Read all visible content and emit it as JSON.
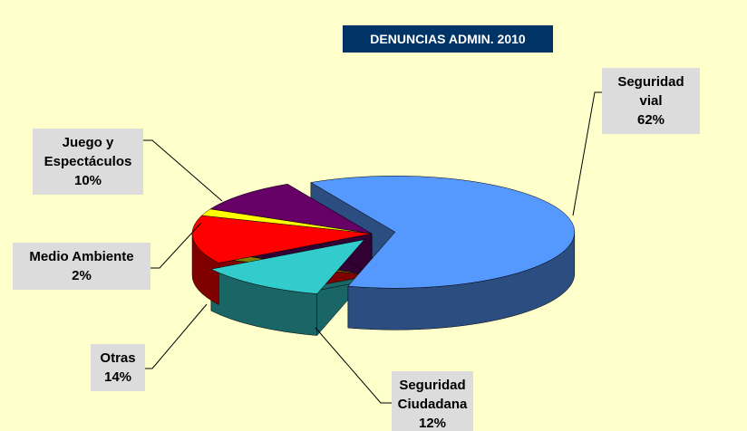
{
  "chart_data": {
    "type": "pie",
    "title": "DENUNCIAS ADMIN. 2010",
    "categories": [
      "Seguridad vial",
      "Seguridad Ciudadana",
      "Otras",
      "Medio Ambiente",
      "Juego y Espectáculos"
    ],
    "values": [
      62,
      12,
      14,
      2,
      10
    ],
    "value_labels": [
      "62%",
      "12%",
      "14%",
      "2%",
      "10%"
    ],
    "colors": [
      "#5599ff",
      "#33cccc",
      "#ff0000",
      "#ffff00",
      "#660066"
    ]
  }
}
